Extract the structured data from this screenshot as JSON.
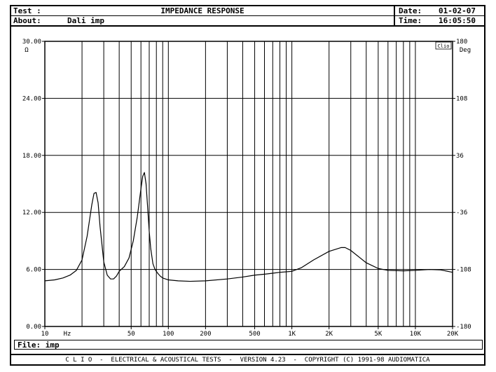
{
  "header": {
    "test_label": "Test :",
    "title": "IMPEDANCE RESPONSE",
    "about_label": "About:",
    "about_value": "Dali imp",
    "date_label": "Date:",
    "date_value": "01-02-07",
    "time_label": "Time:",
    "time_value": "16:05:50"
  },
  "file": {
    "label": "File:",
    "value": "imp"
  },
  "footer": {
    "text": "C L I O  -  ELECTRICAL & ACOUSTICAL TESTS  -  VERSION 4.23  -  COPYRIGHT (C) 1991-98 AUDIOMATICA"
  },
  "chart_data": {
    "type": "line",
    "title": "IMPEDANCE RESPONSE",
    "x_scale": "log",
    "xlim": [
      10,
      20000
    ],
    "ylim": [
      0,
      30
    ],
    "y2lim": [
      -180,
      180
    ],
    "y_unit": "Ω",
    "y2_unit": "Deg",
    "badge": "Clio",
    "x_unit_label": "Hz",
    "x_ticks": [
      {
        "value": 10,
        "label": "10"
      },
      {
        "value": 50,
        "label": "50"
      },
      {
        "value": 100,
        "label": "100"
      },
      {
        "value": 200,
        "label": "200"
      },
      {
        "value": 500,
        "label": "500"
      },
      {
        "value": 1000,
        "label": "1K"
      },
      {
        "value": 2000,
        "label": "2K"
      },
      {
        "value": 5000,
        "label": "5K"
      },
      {
        "value": 10000,
        "label": "10K"
      },
      {
        "value": 20000,
        "label": "20K"
      }
    ],
    "x_gridlines": [
      20,
      30,
      40,
      50,
      60,
      70,
      80,
      90,
      100,
      200,
      300,
      400,
      500,
      600,
      700,
      800,
      900,
      1000,
      2000,
      3000,
      4000,
      5000,
      6000,
      7000,
      8000,
      9000,
      10000
    ],
    "y_ticks": [
      {
        "value": 0,
        "label": "0.00"
      },
      {
        "value": 6,
        "label": "6.00"
      },
      {
        "value": 12,
        "label": "12.00"
      },
      {
        "value": 18,
        "label": "18.00"
      },
      {
        "value": 24,
        "label": "24.00"
      },
      {
        "value": 30,
        "label": "30.00"
      }
    ],
    "y2_ticks": [
      {
        "value": -180,
        "label": "-180"
      },
      {
        "value": -108,
        "label": "-108"
      },
      {
        "value": -36,
        "label": "-36"
      },
      {
        "value": 36,
        "label": "36"
      },
      {
        "value": 108,
        "label": "108"
      },
      {
        "value": 180,
        "label": "180"
      }
    ],
    "grid": true,
    "series": [
      {
        "color": "#000000",
        "x": [
          10,
          12,
          14,
          16,
          18,
          20,
          22,
          24,
          25,
          26,
          27,
          28,
          30,
          32,
          34,
          36,
          38,
          40,
          44,
          48,
          52,
          56,
          60,
          62,
          64,
          66,
          68,
          70,
          72,
          75,
          78,
          82,
          86,
          90,
          100,
          120,
          150,
          200,
          300,
          400,
          500,
          600,
          700,
          800,
          900,
          1000,
          1200,
          1500,
          2000,
          2500,
          2700,
          3000,
          3500,
          4000,
          5000,
          6000,
          8000,
          10000,
          13000,
          16000,
          20000
        ],
        "values": [
          4.8,
          4.9,
          5.1,
          5.4,
          5.9,
          7.0,
          9.5,
          12.8,
          14.0,
          14.1,
          13.0,
          10.5,
          6.8,
          5.4,
          5.0,
          5.0,
          5.3,
          5.8,
          6.3,
          7.2,
          9.0,
          11.5,
          14.5,
          15.8,
          16.2,
          15.0,
          12.5,
          10.0,
          8.2,
          6.6,
          6.0,
          5.6,
          5.3,
          5.1,
          4.9,
          4.8,
          4.75,
          4.8,
          5.0,
          5.2,
          5.4,
          5.5,
          5.6,
          5.7,
          5.75,
          5.8,
          6.2,
          7.0,
          7.9,
          8.3,
          8.3,
          8.0,
          7.3,
          6.7,
          6.1,
          5.9,
          5.85,
          5.9,
          6.0,
          5.95,
          5.7
        ]
      }
    ]
  }
}
